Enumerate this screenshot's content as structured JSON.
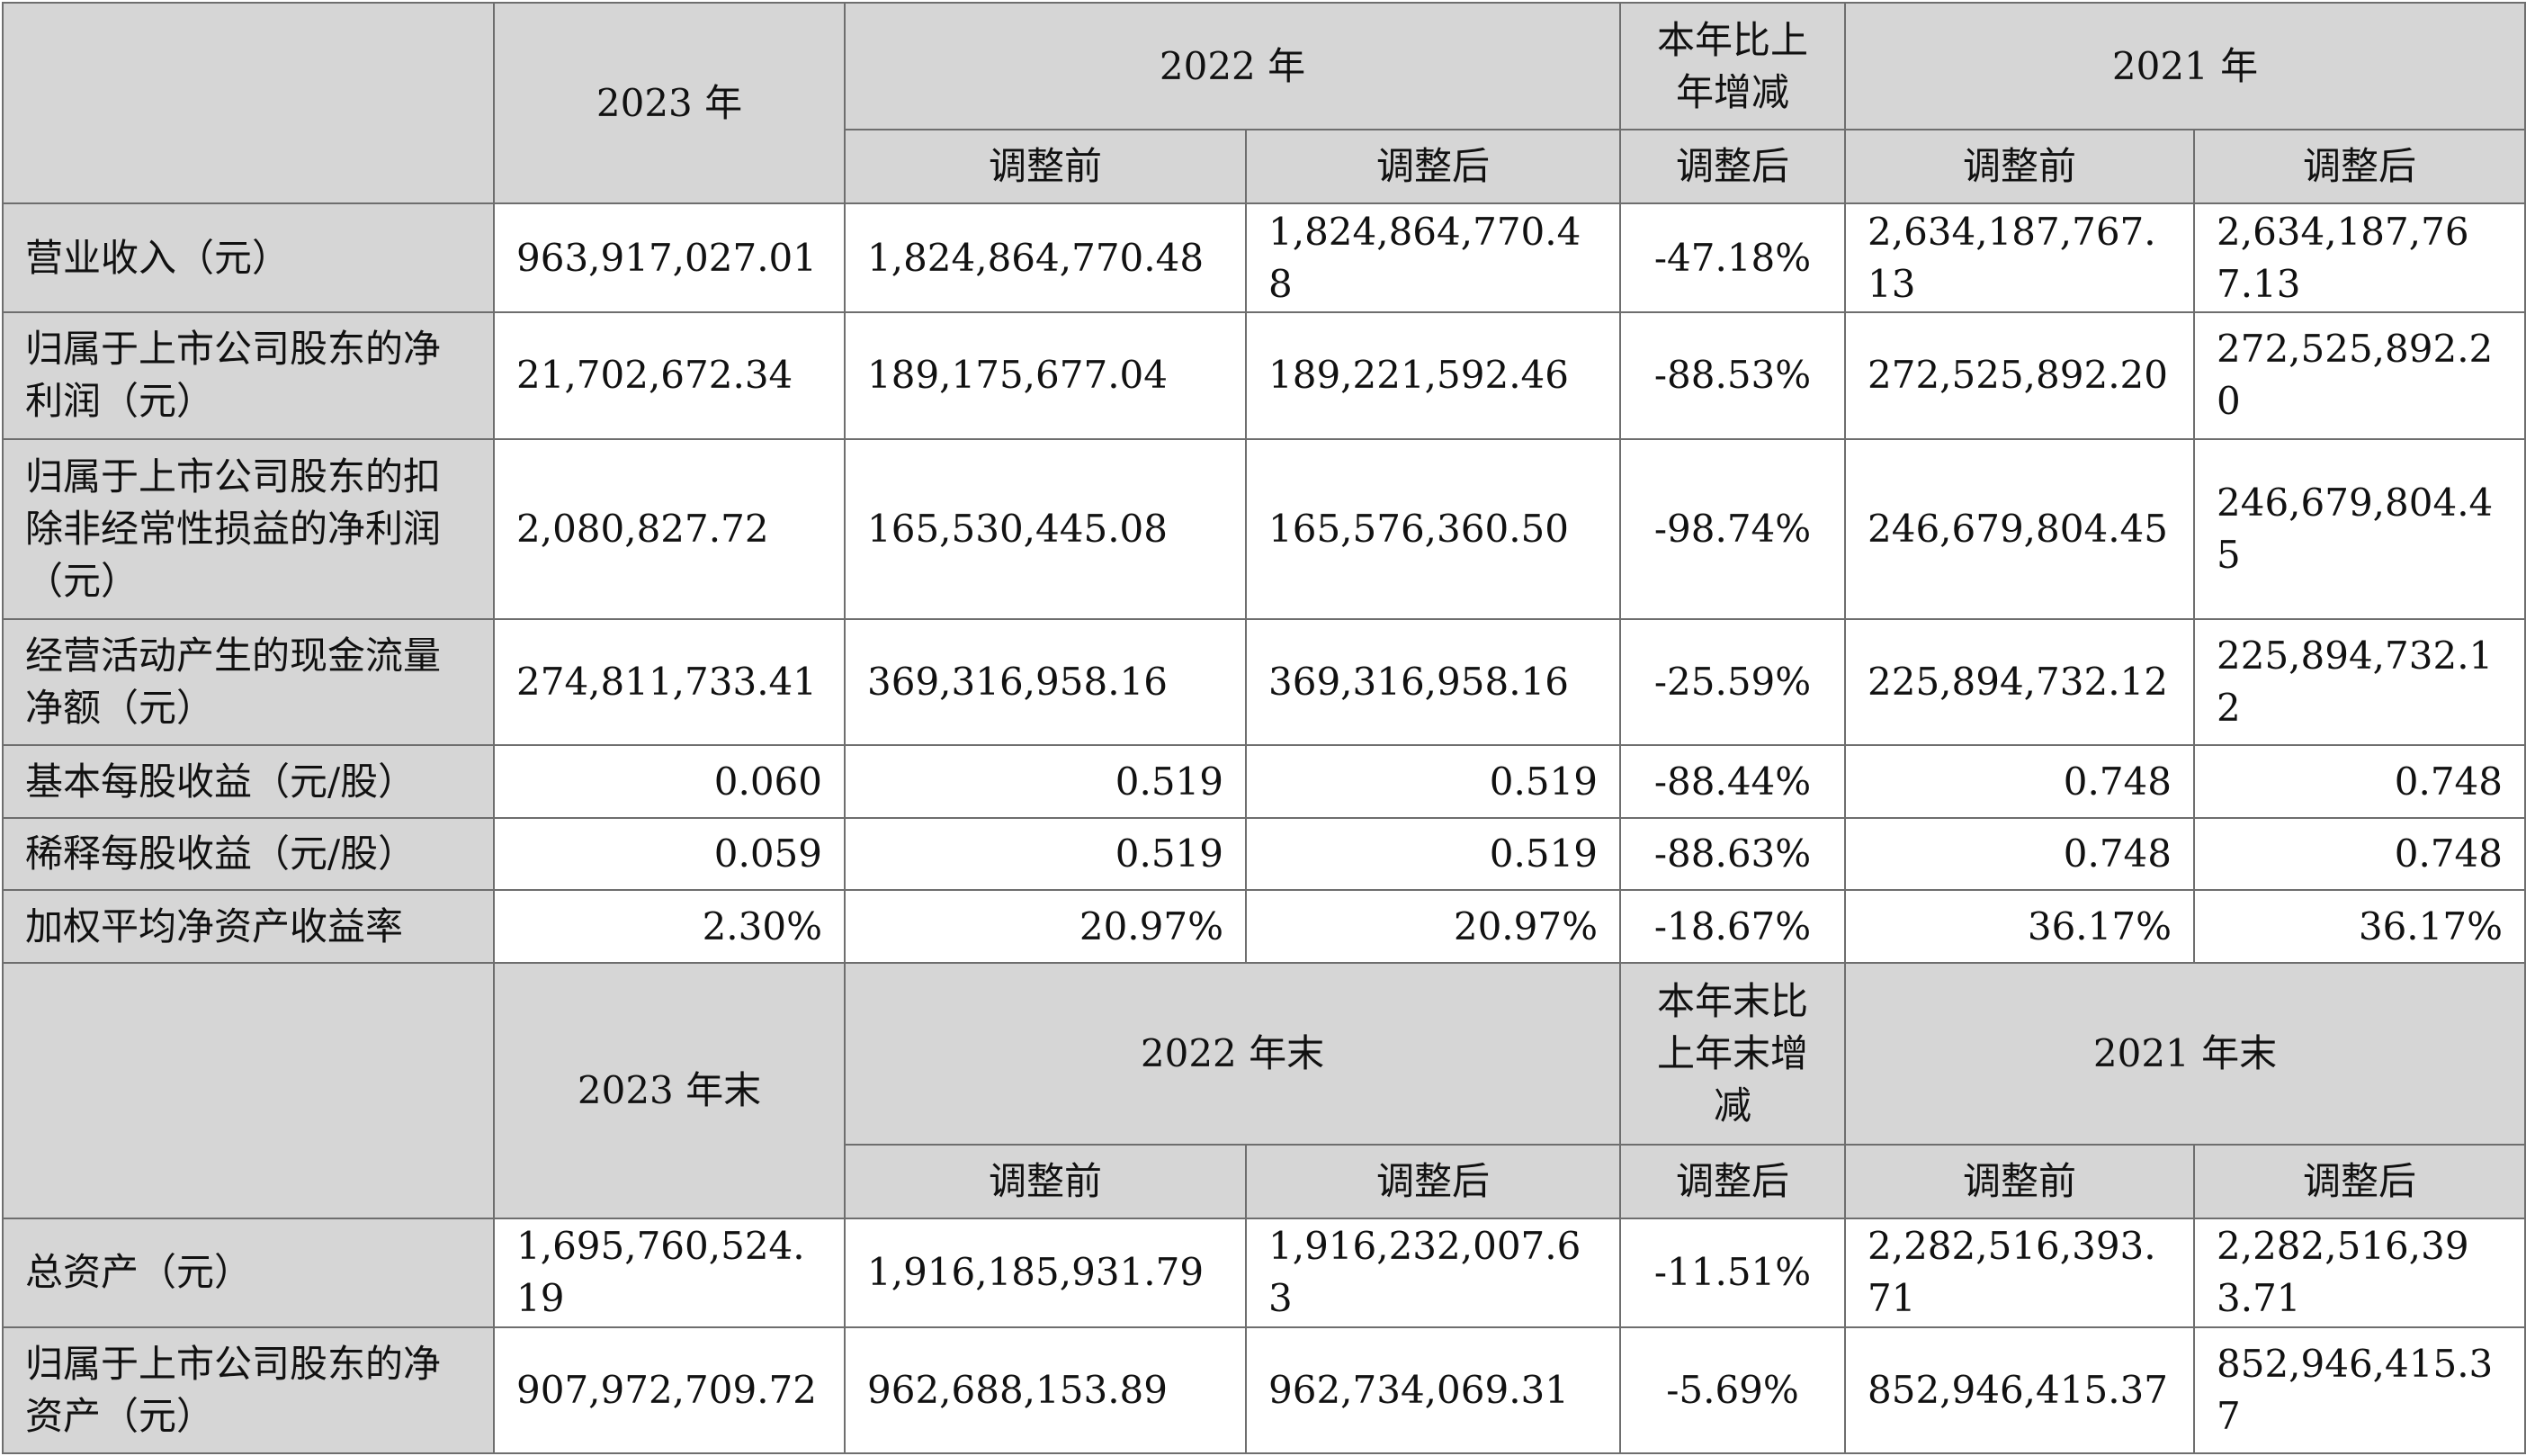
{
  "section1": {
    "header": {
      "blank": "",
      "y2023": "2023 年",
      "y2022": "2022 年",
      "change": "本年比上年增减",
      "y2021": "2021 年",
      "before": "调整前",
      "after": "调整后"
    },
    "rows": [
      {
        "label": "营业收入（元）",
        "y2023": "963,917,027.01",
        "y2022_before": "1,824,864,770.48",
        "y2022_after": "1,824,864,770.48",
        "change": "-47.18%",
        "y2021_before": "2,634,187,767.13",
        "y2021_after": "2,634,187,767.13"
      },
      {
        "label": "归属于上市公司股东的净利润（元）",
        "y2023": "21,702,672.34",
        "y2022_before": "189,175,677.04",
        "y2022_after": "189,221,592.46",
        "change": "-88.53%",
        "y2021_before": "272,525,892.20",
        "y2021_after": "272,525,892.20"
      },
      {
        "label": "归属于上市公司股东的扣除非经常性损益的净利润（元）",
        "y2023": "2,080,827.72",
        "y2022_before": "165,530,445.08",
        "y2022_after": "165,576,360.50",
        "change": "-98.74%",
        "y2021_before": "246,679,804.45",
        "y2021_after": "246,679,804.45"
      },
      {
        "label": "经营活动产生的现金流量净额（元）",
        "y2023": "274,811,733.41",
        "y2022_before": "369,316,958.16",
        "y2022_after": "369,316,958.16",
        "change": "-25.59%",
        "y2021_before": "225,894,732.12",
        "y2021_after": "225,894,732.12"
      },
      {
        "label": "基本每股收益（元/股）",
        "y2023": "0.060",
        "y2022_before": "0.519",
        "y2022_after": "0.519",
        "change": "-88.44%",
        "y2021_before": "0.748",
        "y2021_after": "0.748"
      },
      {
        "label": "稀释每股收益（元/股）",
        "y2023": "0.059",
        "y2022_before": "0.519",
        "y2022_after": "0.519",
        "change": "-88.63%",
        "y2021_before": "0.748",
        "y2021_after": "0.748"
      },
      {
        "label": "加权平均净资产收益率",
        "y2023": "2.30%",
        "y2022_before": "20.97%",
        "y2022_after": "20.97%",
        "change": "-18.67%",
        "y2021_before": "36.17%",
        "y2021_after": "36.17%"
      }
    ]
  },
  "section2": {
    "header": {
      "blank": "",
      "y2023": "2023 年末",
      "y2022": "2022 年末",
      "change": "本年末比上年末增减",
      "y2021": "2021 年末",
      "before": "调整前",
      "after": "调整后"
    },
    "rows": [
      {
        "label": "总资产（元）",
        "y2023": "1,695,760,524.19",
        "y2022_before": "1,916,185,931.79",
        "y2022_after": "1,916,232,007.63",
        "change": "-11.51%",
        "y2021_before": "2,282,516,393.71",
        "y2021_after": "2,282,516,393.71"
      },
      {
        "label": "归属于上市公司股东的净资产（元）",
        "y2023": "907,972,709.72",
        "y2022_before": "962,688,153.89",
        "y2022_after": "962,734,069.31",
        "change": "-5.69%",
        "y2021_before": "852,946,415.37",
        "y2021_after": "852,946,415.37"
      }
    ]
  }
}
